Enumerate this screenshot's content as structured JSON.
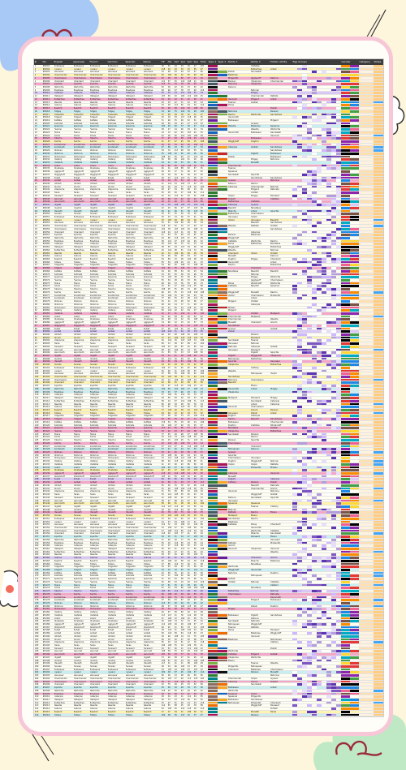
{
  "sheet": {
    "title": "Pokédex data spreadsheet",
    "column_headers": [
      "#",
      "No.",
      "English",
      "Japanese",
      "French",
      "German",
      "Spanish",
      "Italian",
      "HP",
      "Atk",
      "Def",
      "SpA",
      "SpD",
      "Spe",
      "Total",
      "Type 1",
      "Type 2",
      "Ability 1",
      "Ability 2",
      "Hidden Ability",
      "Egg Groups",
      "Gender",
      "Category",
      "Notes"
    ],
    "row_count": 216,
    "sample_names": [
      "Bulbasaur",
      "Ivysaur",
      "Venusaur",
      "Charmander",
      "Charmeleon",
      "Charizard",
      "Squirtle",
      "Wartortle",
      "Blastoise",
      "Caterpie",
      "Metapod",
      "Butterfree",
      "Weedle",
      "Kakuna",
      "Beedrill",
      "Pidgey",
      "Pidgeotto",
      "Pidgeot",
      "Rattata",
      "Raticate",
      "Spearow",
      "Fearow",
      "Ekans",
      "Arbok",
      "Pikachu",
      "Raichu",
      "Sandshrew",
      "Sandslash",
      "Nidoran",
      "Nidorina",
      "Nidoqueen",
      "Clefairy",
      "Clefable",
      "Vulpix",
      "Ninetales",
      "Jigglypuff",
      "Wigglytuff",
      "Zubat",
      "Golbat",
      "Oddish",
      "Gloom",
      "Vileplume",
      "Paras",
      "Parasect",
      "Venonat",
      "Venomoth",
      "Diglett",
      "Dugtrio",
      "Meowth",
      "Persian"
    ]
  },
  "colors": {
    "background": "#fdf5dc",
    "frame": "#f7c7d8",
    "blob_blue": "#a8c8f5",
    "blob_green": "#bfe8c4",
    "row_pink": "#f4a6c8",
    "row_yellow": "#fff3b0",
    "row_cyan": "#c7eef0",
    "row_lav": "#d9c8f5",
    "header": "#3d3d3d"
  }
}
